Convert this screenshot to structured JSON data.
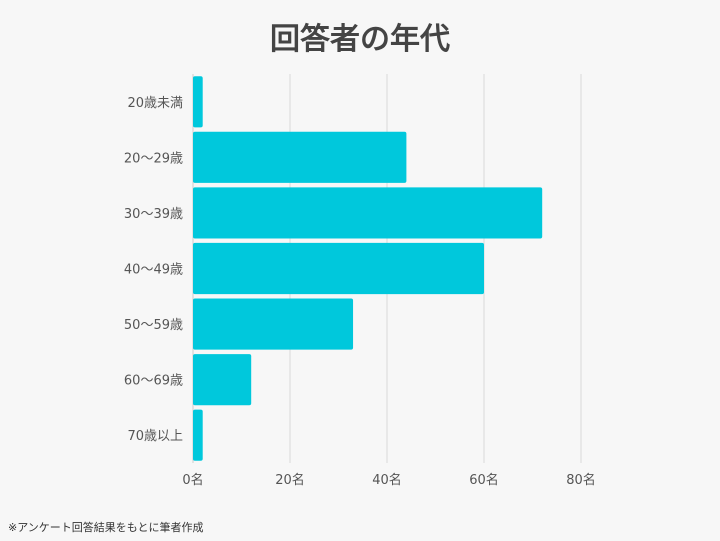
{
  "title": "回答者の年代",
  "footnote": "※アンケート回答結果をもとに筆者作成",
  "colors": {
    "bar": "#00c8dc",
    "grid": "#d9d9d9",
    "axis": "#cccccc",
    "text": "#555555"
  },
  "chart_data": {
    "type": "bar",
    "orientation": "horizontal",
    "title": "回答者の年代",
    "categories": [
      "20歳未満",
      "20〜29歳",
      "30〜39歳",
      "40〜49歳",
      "50〜59歳",
      "60〜69歳",
      "70歳以上"
    ],
    "values": [
      2,
      44,
      72,
      60,
      33,
      12,
      2
    ],
    "xlim": [
      0,
      80
    ],
    "xticks": [
      0,
      20,
      40,
      60,
      80
    ],
    "xtick_labels": [
      "0名",
      "20名",
      "40名",
      "60名",
      "80名"
    ],
    "grid": true,
    "legend": "none"
  }
}
